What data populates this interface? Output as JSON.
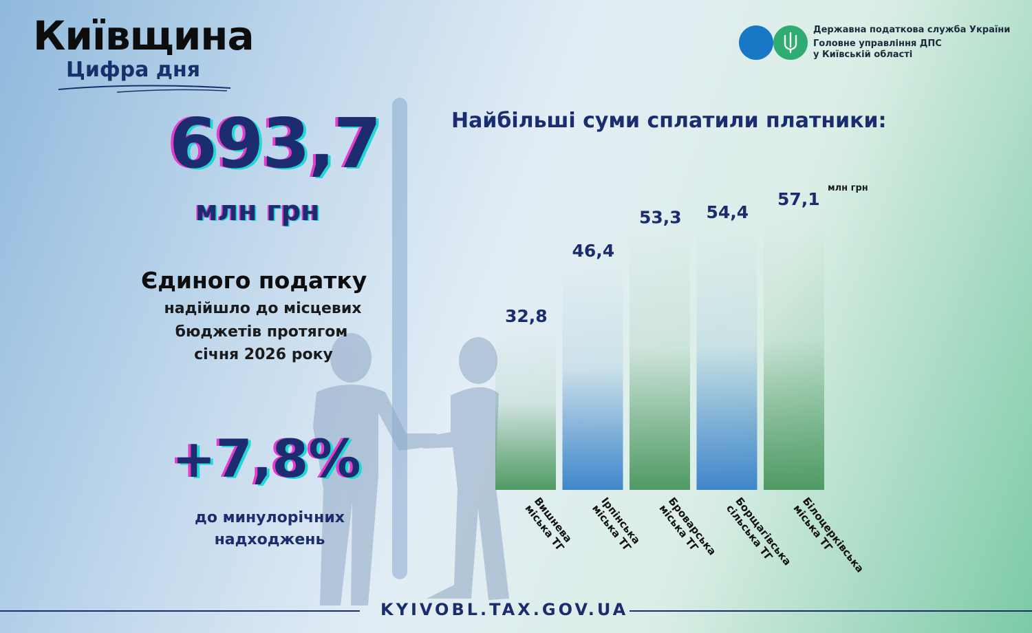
{
  "header": {
    "title": "Київщина",
    "subtitle": "Цифра дня"
  },
  "organization": {
    "line1": "Державна податкова служба України",
    "line2": "Головне управління ДПС",
    "line3": "у Київській області",
    "logo_icon": "trident-icon",
    "logo_colors": [
      "#1878c5",
      "#2fac72"
    ]
  },
  "highlight": {
    "total_value": "693,7",
    "total_unit": "млн грн",
    "tax_name": "Єдиного податку",
    "description_lines": [
      "надійшло до місцевих",
      "бюджетів протягом",
      "січня 2026 року"
    ],
    "growth_value": "+7,8%",
    "growth_lines": [
      "до минулорічних",
      "надходжень"
    ]
  },
  "chart_heading": "Найбільші суми сплатили платники:",
  "chart_data": {
    "type": "bar",
    "unit_label": "млн грн",
    "categories": [
      [
        "Вишнева",
        "міська ТГ"
      ],
      [
        "Ірпінська",
        "міська ТГ"
      ],
      [
        "Броварська",
        "міська ТГ"
      ],
      [
        "Борщагівська",
        "сільська ТГ"
      ],
      [
        "Білоцерківська",
        "міська ТГ"
      ]
    ],
    "values": [
      32.8,
      46.4,
      53.3,
      54.4,
      57.1
    ],
    "value_labels": [
      "32,8",
      "46,4",
      "53,3",
      "54,4",
      "57,1"
    ],
    "bar_colors": [
      "#4f9a63",
      "#3f86cb",
      "#4f9a63",
      "#3f86cb",
      "#4f9a63"
    ],
    "grid": false
  },
  "footer": {
    "url": "KYIVOBL.TAX.GOV.UA"
  }
}
